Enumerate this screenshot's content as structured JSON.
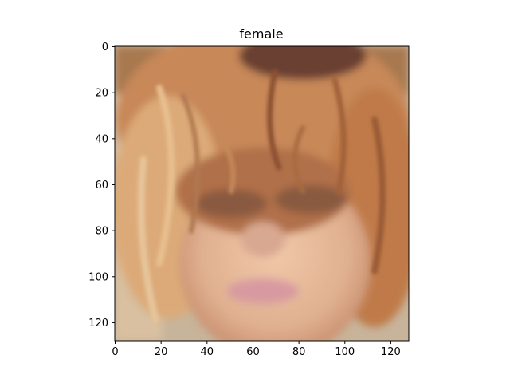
{
  "chart_data": {
    "type": "image",
    "title": "female",
    "image_description": "blurry close-up of a face with messy blonde hair",
    "xlim": [
      0,
      128
    ],
    "ylim": [
      128,
      0
    ],
    "x_ticks": [
      0,
      20,
      40,
      60,
      80,
      100,
      120
    ],
    "y_ticks": [
      0,
      20,
      40,
      60,
      80,
      100,
      120
    ],
    "grid": false,
    "colors": {
      "skin": "#e8b898",
      "hair_light": "#d8a878",
      "hair_dark": "#8a4a2a",
      "background": "#c8b8a0"
    }
  }
}
